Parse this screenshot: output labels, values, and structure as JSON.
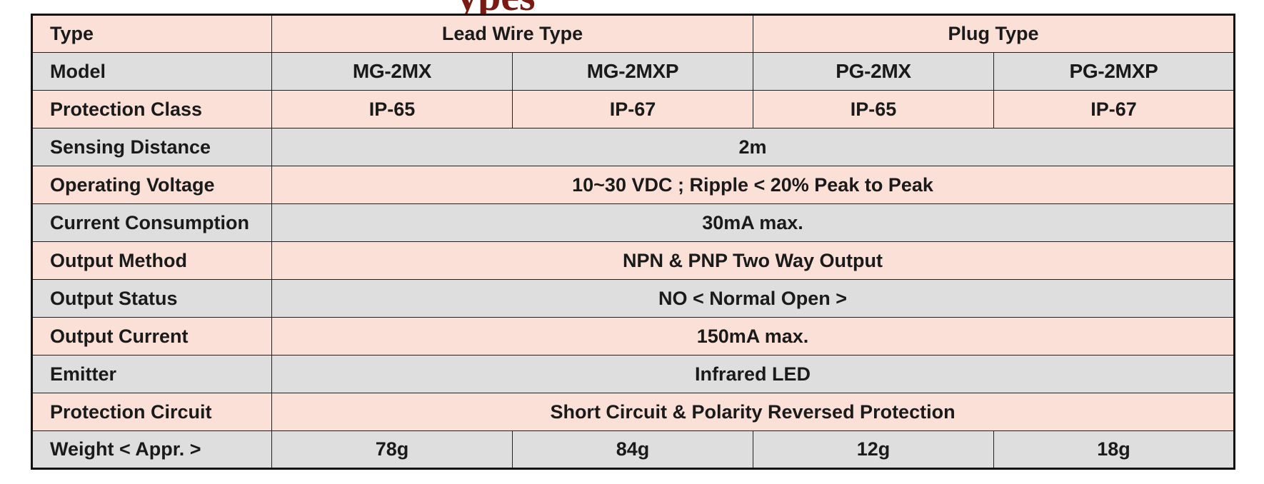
{
  "heading_fragment": "ypes",
  "table": {
    "rows": [
      {
        "label": "Type",
        "shade": "pink",
        "cells": [
          {
            "text": "Lead Wire Type",
            "span": 2
          },
          {
            "text": "Plug Type",
            "span": 2
          }
        ]
      },
      {
        "label": "Model",
        "shade": "grey",
        "cells": [
          {
            "text": "MG-2MX",
            "span": 1
          },
          {
            "text": "MG-2MXP",
            "span": 1
          },
          {
            "text": "PG-2MX",
            "span": 1
          },
          {
            "text": "PG-2MXP",
            "span": 1
          }
        ]
      },
      {
        "label": "Protection Class",
        "shade": "pink",
        "cells": [
          {
            "text": "IP-65",
            "span": 1
          },
          {
            "text": "IP-67",
            "span": 1
          },
          {
            "text": "IP-65",
            "span": 1
          },
          {
            "text": "IP-67",
            "span": 1
          }
        ]
      },
      {
        "label": "Sensing Distance",
        "shade": "grey",
        "cells": [
          {
            "text": "2m",
            "span": 4
          }
        ]
      },
      {
        "label": "Operating Voltage",
        "shade": "pink",
        "cells": [
          {
            "text": "10~30 VDC ; Ripple < 20% Peak to Peak",
            "span": 4
          }
        ]
      },
      {
        "label": "Current Consumption",
        "shade": "grey",
        "cells": [
          {
            "text": "30mA max.",
            "span": 4
          }
        ]
      },
      {
        "label": "Output Method",
        "shade": "pink",
        "cells": [
          {
            "text": "NPN & PNP Two Way Output",
            "span": 4
          }
        ]
      },
      {
        "label": "Output Status",
        "shade": "grey",
        "cells": [
          {
            "text": "NO < Normal Open >",
            "span": 4
          }
        ]
      },
      {
        "label": "Output Current",
        "shade": "pink",
        "cells": [
          {
            "text": "150mA max.",
            "span": 4
          }
        ]
      },
      {
        "label": "Emitter",
        "shade": "grey",
        "cells": [
          {
            "text": "Infrared LED",
            "span": 4
          }
        ]
      },
      {
        "label": "Protection Circuit",
        "shade": "pink",
        "cells": [
          {
            "text": "Short Circuit & Polarity Reversed Protection",
            "span": 4
          }
        ]
      },
      {
        "label": "Weight < Appr. >",
        "shade": "grey",
        "cells": [
          {
            "text": "78g",
            "span": 1
          },
          {
            "text": "84g",
            "span": 1
          },
          {
            "text": "12g",
            "span": 1
          },
          {
            "text": "18g",
            "span": 1
          }
        ]
      }
    ]
  },
  "colors": {
    "row_pink": "#fbe0d8",
    "row_grey": "#dedede",
    "heading_red": "#7a1a12",
    "border": "#111111"
  }
}
